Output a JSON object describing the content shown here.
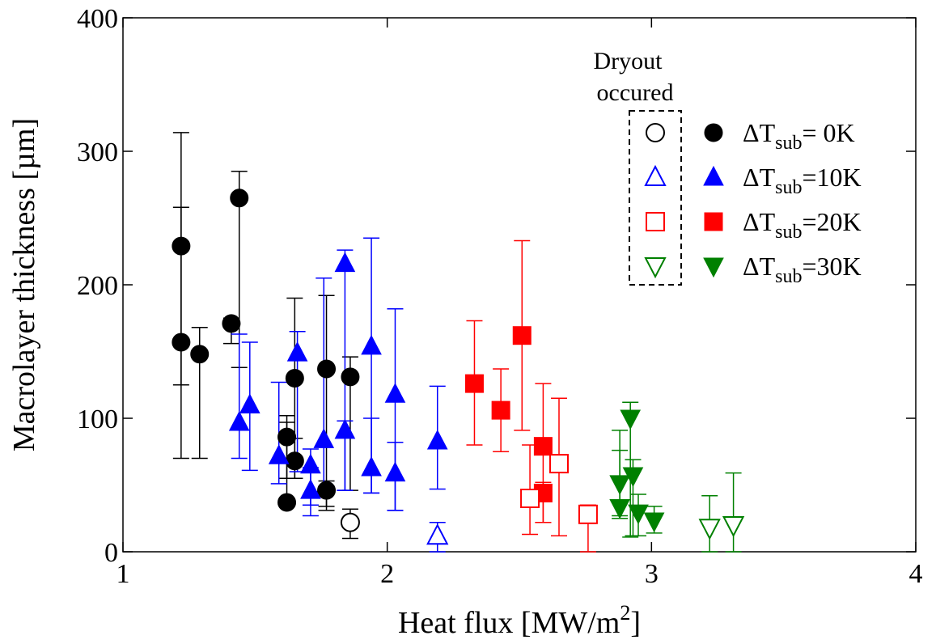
{
  "chart_data": {
    "type": "scatter",
    "xlabel": "Heat flux [MW/m",
    "xlabel_sup": "2",
    "xlabel_end": "]",
    "ylabel": "Macrolayer thickness [µm]",
    "xlim": [
      1,
      4
    ],
    "ylim": [
      0,
      400
    ],
    "x_ticks": [
      1,
      2,
      3,
      4
    ],
    "y_ticks": [
      0,
      100,
      200,
      300,
      400
    ],
    "grid": false,
    "legend_position": "top-right",
    "dryout_label_line1": "Dryout",
    "dryout_label_line2": "occured",
    "series": [
      {
        "name": "ΔTsub= 0K",
        "label_prefix": "ΔT",
        "label_sub": "sub",
        "label_suffix": "= 0K",
        "marker": "circle",
        "color": "#000000",
        "points": [
          {
            "x": 1.22,
            "y": 229,
            "lo": 125,
            "hi": 314
          },
          {
            "x": 1.22,
            "y": 157,
            "lo": 70,
            "hi": 258
          },
          {
            "x": 1.29,
            "y": 148,
            "lo": 70,
            "hi": 168
          },
          {
            "x": 1.41,
            "y": 171,
            "lo": 156,
            "hi": 175
          },
          {
            "x": 1.44,
            "y": 265,
            "lo": 138,
            "hi": 285
          },
          {
            "x": 1.62,
            "y": 86,
            "lo": 55,
            "hi": 102
          },
          {
            "x": 1.62,
            "y": 37,
            "lo": 37,
            "hi": 97
          },
          {
            "x": 1.65,
            "y": 130,
            "lo": 55,
            "hi": 190
          },
          {
            "x": 1.65,
            "y": 68,
            "lo": 55,
            "hi": 85
          },
          {
            "x": 1.77,
            "y": 137,
            "lo": 34,
            "hi": 192
          },
          {
            "x": 1.77,
            "y": 46,
            "lo": 31,
            "hi": 53
          },
          {
            "x": 1.86,
            "y": 131,
            "lo": 46,
            "hi": 146
          }
        ],
        "dryout_points": [
          {
            "x": 1.86,
            "y": 22,
            "lo": 10,
            "hi": 32
          }
        ]
      },
      {
        "name": "ΔTsub=10K",
        "label_prefix": "ΔT",
        "label_sub": "sub",
        "label_suffix": "=10K",
        "marker": "triangle-up",
        "color": "#0000ff",
        "points": [
          {
            "x": 1.44,
            "y": 97,
            "lo": 70,
            "hi": 163
          },
          {
            "x": 1.48,
            "y": 110,
            "lo": 61,
            "hi": 157
          },
          {
            "x": 1.59,
            "y": 72,
            "lo": 51,
            "hi": 127
          },
          {
            "x": 1.66,
            "y": 149,
            "lo": 60,
            "hi": 165
          },
          {
            "x": 1.71,
            "y": 65,
            "lo": 35,
            "hi": 77
          },
          {
            "x": 1.71,
            "y": 46,
            "lo": 27,
            "hi": 63
          },
          {
            "x": 1.76,
            "y": 84,
            "lo": 45,
            "hi": 205
          },
          {
            "x": 1.84,
            "y": 216,
            "lo": 46,
            "hi": 226
          },
          {
            "x": 1.84,
            "y": 91,
            "lo": 46,
            "hi": 98
          },
          {
            "x": 1.94,
            "y": 154,
            "lo": 44,
            "hi": 235
          },
          {
            "x": 1.94,
            "y": 63,
            "lo": 44,
            "hi": 100
          },
          {
            "x": 2.03,
            "y": 118,
            "lo": 31,
            "hi": 182
          },
          {
            "x": 2.03,
            "y": 59,
            "lo": 31,
            "hi": 82
          },
          {
            "x": 2.19,
            "y": 83,
            "lo": 47,
            "hi": 124
          }
        ],
        "dryout_points": [
          {
            "x": 2.19,
            "y": 12,
            "lo": 0,
            "hi": 22
          }
        ]
      },
      {
        "name": "ΔTsub=20K",
        "label_prefix": "ΔT",
        "label_sub": "sub",
        "label_suffix": "=20K",
        "marker": "square",
        "color": "#ff0000",
        "points": [
          {
            "x": 2.33,
            "y": 126,
            "lo": 80,
            "hi": 173
          },
          {
            "x": 2.43,
            "y": 106,
            "lo": 75,
            "hi": 137
          },
          {
            "x": 2.51,
            "y": 162,
            "lo": 91,
            "hi": 233
          },
          {
            "x": 2.59,
            "y": 79,
            "lo": 22,
            "hi": 126
          },
          {
            "x": 2.59,
            "y": 44,
            "lo": 22,
            "hi": 52
          }
        ],
        "dryout_points": [
          {
            "x": 2.54,
            "y": 40,
            "lo": 13,
            "hi": 80
          },
          {
            "x": 2.65,
            "y": 66,
            "lo": 12,
            "hi": 115
          },
          {
            "x": 2.76,
            "y": 28,
            "lo": 0,
            "hi": 35
          }
        ]
      },
      {
        "name": "ΔTsub=30K",
        "label_prefix": "ΔT",
        "label_sub": "sub",
        "label_suffix": "=30K",
        "marker": "triangle-down",
        "color": "#008000",
        "points": [
          {
            "x": 2.88,
            "y": 51,
            "lo": 27,
            "hi": 91
          },
          {
            "x": 2.88,
            "y": 33,
            "lo": 25,
            "hi": 76
          },
          {
            "x": 2.92,
            "y": 100,
            "lo": 11,
            "hi": 112
          },
          {
            "x": 2.93,
            "y": 57,
            "lo": 12,
            "hi": 69
          },
          {
            "x": 2.95,
            "y": 29,
            "lo": 12,
            "hi": 43
          },
          {
            "x": 3.01,
            "y": 23,
            "lo": 14,
            "hi": 34
          }
        ],
        "dryout_points": [
          {
            "x": 3.22,
            "y": 18,
            "lo": 0,
            "hi": 42
          },
          {
            "x": 3.31,
            "y": 20,
            "lo": 0,
            "hi": 59
          }
        ]
      }
    ]
  }
}
